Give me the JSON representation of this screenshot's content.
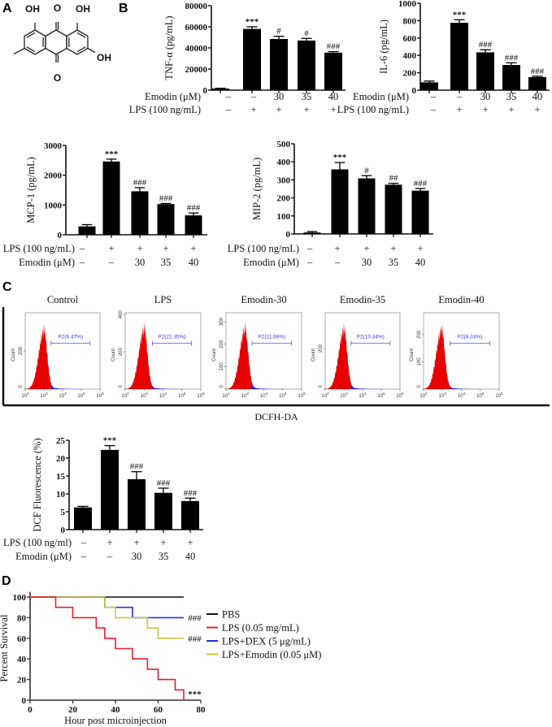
{
  "panel_labels": {
    "a": "A",
    "b": "B",
    "c": "C",
    "d": "D"
  },
  "structure": {
    "substituents": [
      "OH",
      "O",
      "OH",
      "OH",
      "O"
    ]
  },
  "chart_data": [
    {
      "id": "tnf",
      "type": "bar",
      "ylabel": "TNF-α (pg/mL)",
      "ylim": [
        0,
        80000
      ],
      "yticks": [
        0,
        20000,
        40000,
        60000,
        80000
      ],
      "values": [
        1500,
        58000,
        48500,
        47000,
        35500
      ],
      "errors": [
        300,
        2000,
        2500,
        2000,
        1000
      ],
      "annotations": [
        "",
        "***",
        "#",
        "#",
        "###"
      ],
      "rows": [
        {
          "label": "Emodin (μM)",
          "values": [
            "–",
            "–",
            "30",
            "35",
            "40"
          ]
        },
        {
          "label": "LPS (100 ng/mL)",
          "values": [
            "–",
            "+",
            "+",
            "+",
            "+"
          ]
        }
      ]
    },
    {
      "id": "il6",
      "type": "bar",
      "ylabel": "IL-6 (pg/mL)",
      "ylim": [
        0,
        1000
      ],
      "yticks": [
        0,
        200,
        400,
        600,
        800,
        1000
      ],
      "values": [
        90,
        775,
        435,
        290,
        150
      ],
      "errors": [
        15,
        35,
        30,
        25,
        10
      ],
      "annotations": [
        "",
        "***",
        "###",
        "###",
        "###"
      ],
      "rows": [
        {
          "label": "Emodin (μM)",
          "values": [
            "–",
            "–",
            "30",
            "35",
            "40"
          ]
        },
        {
          "label": "LPS (100 ng/mL)",
          "values": [
            "–",
            "+",
            "+",
            "+",
            "+"
          ]
        }
      ]
    },
    {
      "id": "mcp1",
      "type": "bar",
      "ylabel": "MCP-1  (pg/mL)",
      "ylim": [
        0,
        3000
      ],
      "yticks": [
        0,
        1000,
        2000,
        3000
      ],
      "values": [
        280,
        2460,
        1460,
        1030,
        650
      ],
      "errors": [
        60,
        80,
        120,
        20,
        80
      ],
      "annotations": [
        "",
        "***",
        "###",
        "###",
        "###"
      ],
      "rows": [
        {
          "label": "LPS (100 ng/mL)",
          "values": [
            "–",
            "+",
            "+",
            "+",
            "+"
          ]
        },
        {
          "label": "Emodin (μM)",
          "values": [
            "–",
            "–",
            "30",
            "35",
            "40"
          ]
        }
      ]
    },
    {
      "id": "mip2",
      "type": "bar",
      "ylabel": "MIP-2  (pg/mL)",
      "ylim": [
        0,
        500
      ],
      "yticks": [
        0,
        100,
        200,
        300,
        400,
        500
      ],
      "values": [
        8,
        358,
        308,
        273,
        240
      ],
      "errors": [
        5,
        38,
        15,
        8,
        12
      ],
      "annotations": [
        "",
        "***",
        "#",
        "##",
        "###"
      ],
      "rows": [
        {
          "label": "LPS (100 ng/mL)",
          "values": [
            "–",
            "+",
            "+",
            "+",
            "+"
          ]
        },
        {
          "label": "Emodin (μM)",
          "values": [
            "–",
            "–",
            "30",
            "35",
            "40"
          ]
        }
      ]
    },
    {
      "id": "flow",
      "type": "histogram",
      "xlabel": "DCFH-DA",
      "ylabel": "Count",
      "x_tick_base": "10",
      "x_tick_exponents": [
        "2",
        "3",
        "4",
        "5",
        "6"
      ],
      "colors": {
        "below_gate": "#e60000",
        "above_gate": "#1a1ae6",
        "gate": "#6a6ae8"
      },
      "panels": [
        {
          "title": "Control",
          "gate_label": "P2(6.47%)",
          "ylim": [
            0,
            400
          ],
          "yticks": [
            0,
            200
          ],
          "peak_log10": 3.0,
          "peak_count": 335,
          "gate_log10": [
            3.38,
            5.47
          ]
        },
        {
          "title": "LPS",
          "gate_label": "P2(22.35%)",
          "ylim": [
            0,
            410
          ],
          "yticks": [
            0,
            200,
            400
          ],
          "peak_log10": 3.0,
          "peak_count": 350,
          "gate_log10": [
            3.44,
            5.5
          ]
        },
        {
          "title": "Emodin-30",
          "gate_label": "P2(11.88%)",
          "ylim": [
            0,
            340
          ],
          "yticks": [
            0,
            100,
            200,
            300
          ],
          "peak_log10": 3.0,
          "peak_count": 290,
          "gate_log10": [
            3.38,
            5.47
          ]
        },
        {
          "title": "Emodin-35",
          "gate_label": "P2(10.34%)",
          "ylim": [
            0,
            377
          ],
          "yticks": [
            0,
            200
          ],
          "peak_log10": 3.0,
          "peak_count": 320,
          "gate_log10": [
            3.38,
            5.47
          ]
        },
        {
          "title": "Emodin-40",
          "gate_label": "P2(8.33%)",
          "ylim": [
            0,
            280
          ],
          "yticks": [
            0,
            100,
            200
          ],
          "peak_log10": 2.95,
          "peak_count": 237,
          "gate_log10": [
            3.4,
            5.5
          ]
        }
      ]
    },
    {
      "id": "dcf",
      "type": "bar",
      "ylabel": "DCF Fluorescence (%)",
      "ylim": [
        0,
        25
      ],
      "yticks": [
        0,
        5,
        10,
        15,
        20,
        25
      ],
      "values": [
        6.2,
        22.3,
        14.1,
        10.3,
        8.0
      ],
      "errors": [
        0.3,
        1.2,
        2.1,
        1.3,
        0.8
      ],
      "annotations": [
        "",
        "***",
        "###",
        "###",
        "###"
      ],
      "rows": [
        {
          "label": "LPS (100 ng/ml)",
          "values": [
            "–",
            "+",
            "+",
            "+",
            "+"
          ]
        },
        {
          "label": "Emodin (μM)",
          "values": [
            "–",
            "–",
            "30",
            "35",
            "40"
          ]
        }
      ]
    },
    {
      "id": "survival",
      "type": "line",
      "step": true,
      "xlabel": "Hour post microinjection",
      "ylabel": "Percent Survival",
      "xlim": [
        0,
        80
      ],
      "ylim": [
        0,
        105
      ],
      "xticks": [
        0,
        20,
        40,
        60,
        80
      ],
      "yticks": [
        0,
        20,
        40,
        60,
        80,
        100
      ],
      "legend_position": "right",
      "series": [
        {
          "name": "PBS",
          "color": "#111111",
          "x": [
            0,
            72
          ],
          "y": [
            100,
            100
          ],
          "annotation": ""
        },
        {
          "name": "LPS (0.05 mg/mL)",
          "color": "#e8202a",
          "x": [
            0,
            12,
            20,
            31,
            35,
            40,
            48,
            55,
            60,
            68,
            72
          ],
          "y": [
            100,
            90,
            80,
            70,
            60,
            50,
            40,
            30,
            20,
            10,
            0
          ],
          "annotation": "***"
        },
        {
          "name": "LPS+DEX (5 μg/mL)",
          "color": "#2030e8",
          "x": [
            0,
            35,
            48,
            72
          ],
          "y": [
            100,
            90,
            80,
            80
          ],
          "annotation": "###"
        },
        {
          "name": "LPS+Emodin (0.05 μM)",
          "color": "#c9c23c",
          "x": [
            0,
            35,
            40,
            55,
            60,
            72
          ],
          "y": [
            100,
            90,
            80,
            70,
            60,
            60
          ],
          "annotation": "###"
        }
      ]
    }
  ]
}
